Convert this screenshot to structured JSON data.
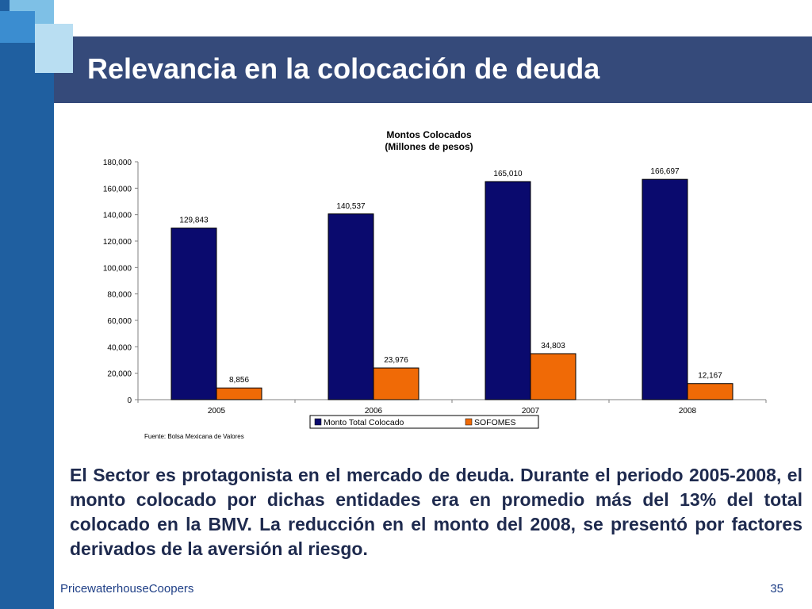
{
  "slide": {
    "title": "Relevancia en la colocación de deuda",
    "body": "El Sector es protagonista en el mercado de deuda.  Durante el periodo 2005-2008, el monto colocado por dichas entidades era en promedio más del 13% del total colocado en la BMV.  La reducción en el monto del 2008, se presentó por factores derivados de la aversión al riesgo.",
    "footer_company": "PricewaterhouseCoopers",
    "page_number": "35"
  },
  "chart_data": {
    "type": "bar",
    "title_line1": "Montos Colocados",
    "title_line2": "(Millones de pesos)",
    "categories": [
      "2005",
      "2006",
      "2007",
      "2008"
    ],
    "series": [
      {
        "name": "Monto Total Colocado",
        "values": [
          129843,
          140537,
          165010,
          166697
        ],
        "labels": [
          "129,843",
          "140,537",
          "165,010",
          "166,697"
        ],
        "color": "#0a0a6e"
      },
      {
        "name": "SOFOMES",
        "values": [
          8856,
          23976,
          34803,
          12167
        ],
        "labels": [
          "8,856",
          "23,976",
          "34,803",
          "12,167"
        ],
        "color": "#f06a06"
      }
    ],
    "ylim": [
      0,
      180000
    ],
    "yticks": [
      0,
      20000,
      40000,
      60000,
      80000,
      100000,
      120000,
      140000,
      160000,
      180000
    ],
    "ytick_labels": [
      "0",
      "20,000",
      "40,000",
      "60,000",
      "80,000",
      "100,000",
      "120,000",
      "140,000",
      "160,000",
      "180,000"
    ],
    "source": "Fuente: Bolsa Mexicana de Valores",
    "legend_position": "bottom",
    "grid": false
  }
}
